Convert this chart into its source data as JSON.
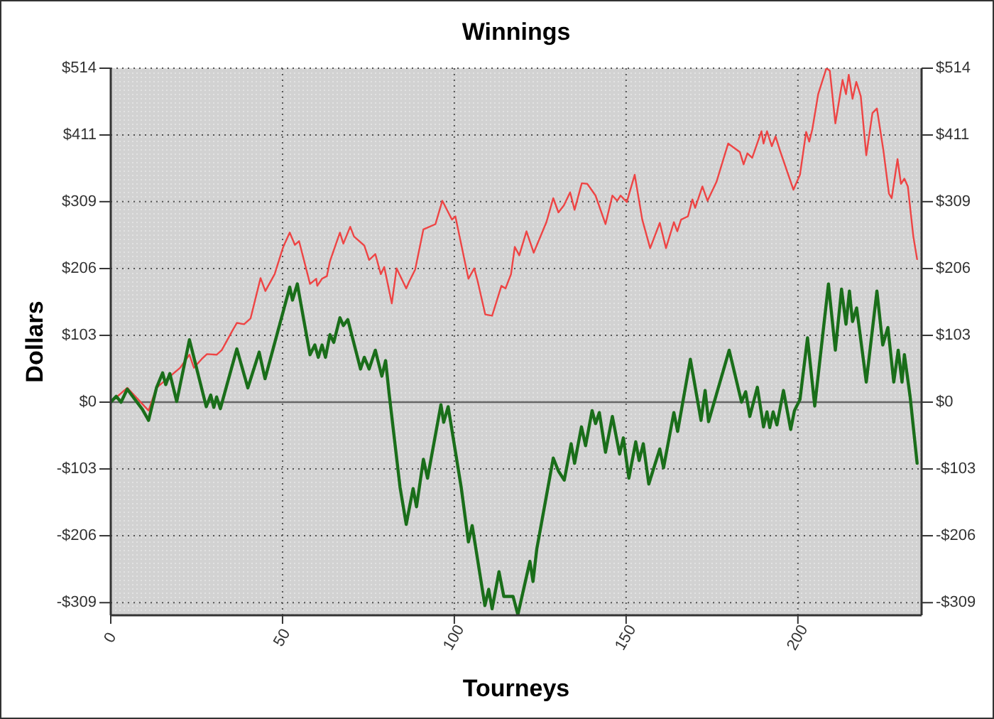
{
  "chart_data": {
    "type": "line",
    "title": "Winnings",
    "xlabel": "Tourneys",
    "ylabel": "Dollars",
    "xlim": [
      0,
      236
    ],
    "xticks": [
      0,
      50,
      100,
      150,
      200
    ],
    "ylim": [
      -328,
      514
    ],
    "yticks": [
      {
        "value": -308.6,
        "label": "-$309"
      },
      {
        "value": -205.6,
        "label": "-$206"
      },
      {
        "value": -102.8,
        "label": "-$103"
      },
      {
        "value": 0,
        "label": "$0"
      },
      {
        "value": 102.8,
        "label": "$103"
      },
      {
        "value": 205.6,
        "label": "$206"
      },
      {
        "value": 308.6,
        "label": "$309"
      },
      {
        "value": 411.2,
        "label": "$411"
      },
      {
        "value": 514,
        "label": "$514"
      }
    ],
    "y2lim": [
      -328,
      514
    ],
    "y2ticks": [
      {
        "value": -308.6,
        "label": "-$309"
      },
      {
        "value": -205.6,
        "label": "-$206"
      },
      {
        "value": -102.8,
        "label": "-$103"
      },
      {
        "value": 0,
        "label": "$0"
      },
      {
        "value": 102.8,
        "label": "$103"
      },
      {
        "value": 205.6,
        "label": "$206"
      },
      {
        "value": 308.6,
        "label": "$309"
      },
      {
        "value": 411.2,
        "label": "$411"
      },
      {
        "value": 514,
        "label": "$514"
      }
    ],
    "grid": true,
    "ref_lines": [
      {
        "axis": "y",
        "value": 0,
        "color": "#666666"
      }
    ],
    "series": [
      {
        "color": "#ee4444",
        "x": [
          0,
          4.8,
          11,
          13.3,
          20.2,
          22.9,
          24.2,
          26.4,
          28,
          30.8,
          32.3,
          35.3,
          36.7,
          38.8,
          40.7,
          43.6,
          45,
          47.7,
          50.2,
          52.1,
          53.6,
          54.8,
          58,
          59.8,
          60.1,
          61.5,
          62.9,
          63.8,
          66.7,
          67.7,
          69.7,
          70.8,
          73.8,
          75.2,
          77,
          78.6,
          79.6,
          81.8,
          83.2,
          86,
          86.9,
          88.6,
          91,
          94.5,
          96.5,
          99.3,
          100.3,
          104.1,
          105.8,
          106.8,
          109,
          111,
          113.7,
          114.9,
          116.5,
          117.6,
          118.9,
          121,
          123.1,
          126.8,
          128.8,
          130.3,
          131.9,
          133.7,
          135,
          137.1,
          138.7,
          141.1,
          144,
          146,
          147.4,
          148.4,
          150.2,
          152.5,
          154.7,
          157,
          159.8,
          161.6,
          163.9,
          164.9,
          166,
          168,
          169.3,
          170.1,
          172.2,
          173.7,
          176.3,
          179.7,
          183.1,
          184.2,
          185.3,
          186.7,
          189.4,
          190,
          191,
          192.4,
          193.5,
          194.8,
          198.7,
          200.6,
          202.4,
          203.3,
          204.2,
          205.9,
          208.3,
          209.3,
          210.9,
          213,
          214,
          214.8,
          215.9,
          217,
          218.3,
          219.9,
          221.7,
          223,
          224.9,
          226.5,
          227.3,
          229,
          230,
          231,
          232,
          233.6,
          234.7
        ],
        "values": [
          0,
          22,
          -13,
          22,
          53,
          73,
          53,
          66,
          74,
          73,
          80,
          109,
          122,
          120,
          129,
          191,
          171,
          197,
          239,
          261,
          242,
          248,
          182,
          190,
          179,
          190,
          194,
          217,
          261,
          244,
          270,
          255,
          241,
          219,
          228,
          197,
          208,
          152,
          206,
          175,
          186,
          204,
          266,
          274,
          310,
          281,
          286,
          190,
          206,
          186,
          135,
          133,
          179,
          175,
          197,
          239,
          226,
          263,
          230,
          277,
          314,
          292,
          303,
          323,
          296,
          337,
          336,
          318,
          274,
          318,
          310,
          318,
          308,
          350,
          281,
          237,
          276,
          237,
          277,
          263,
          281,
          286,
          312,
          299,
          332,
          310,
          339,
          398,
          385,
          366,
          383,
          376,
          417,
          398,
          417,
          394,
          409,
          387,
          327,
          350,
          416,
          401,
          420,
          474,
          514,
          510,
          429,
          496,
          474,
          504,
          467,
          493,
          471,
          380,
          445,
          452,
          387,
          321,
          314,
          374,
          336,
          344,
          332,
          255,
          220
        ]
      },
      {
        "color": "#1a6e1a",
        "x": [
          0,
          1.6,
          3,
          4.8,
          9.2,
          11,
          13.3,
          15.1,
          16,
          17.2,
          19.2,
          22.9,
          27.8,
          29.1,
          30,
          30.8,
          31.9,
          36.7,
          39.9,
          43.2,
          44.9,
          52.1,
          52.9,
          54.3,
          58,
          59.4,
          60.4,
          61.5,
          62.5,
          63.8,
          64.9,
          66.7,
          67.7,
          69,
          72.7,
          73.8,
          75.2,
          77,
          78.9,
          80,
          81,
          84.2,
          86,
          88,
          89,
          91,
          92.2,
          96.1,
          96.9,
          98.2,
          102,
          104.1,
          105.2,
          108.9,
          110,
          111,
          113,
          114.4,
          117.1,
          118.5,
          122,
          122.9,
          124,
          128.8,
          130.3,
          132,
          134,
          135,
          137,
          138.2,
          140.1,
          141.1,
          142.2,
          144,
          146,
          148.1,
          149.2,
          150.8,
          152.8,
          153.8,
          155,
          156.6,
          159.8,
          160.9,
          163.9,
          165,
          168.7,
          171.8,
          173,
          174,
          180,
          183.6,
          184.8,
          186,
          188.2,
          190,
          191,
          191.8,
          192.8,
          193.9,
          195.8,
          197.9,
          199,
          200.6,
          202.8,
          204.9,
          208.9,
          210.9,
          212.7,
          214,
          215,
          215.9,
          217.1,
          219.9,
          223,
          224.7,
          226.2,
          227.9,
          229.2,
          230.3,
          231,
          232.7,
          234.7
        ],
        "values": [
          0,
          9,
          0,
          20,
          -11,
          -28,
          22,
          45,
          27,
          44,
          1,
          96,
          -7,
          11,
          -8,
          8,
          -10,
          82,
          22,
          77,
          36,
          177,
          157,
          182,
          73,
          88,
          69,
          88,
          69,
          104,
          92,
          130,
          118,
          127,
          51,
          69,
          51,
          80,
          40,
          64,
          14,
          -131,
          -188,
          -133,
          -161,
          -88,
          -117,
          -4,
          -31,
          -7,
          -131,
          -215,
          -190,
          -313,
          -288,
          -318,
          -261,
          -299,
          -299,
          -327,
          -245,
          -276,
          -226,
          -86,
          -106,
          -120,
          -64,
          -94,
          -38,
          -67,
          -13,
          -33,
          -16,
          -77,
          -22,
          -80,
          -55,
          -117,
          -61,
          -90,
          -64,
          -126,
          -72,
          -101,
          -16,
          -45,
          66,
          -28,
          18,
          -30,
          80,
          0,
          16,
          -22,
          23,
          -38,
          -15,
          -39,
          -15,
          -35,
          18,
          -42,
          -13,
          4,
          99,
          -6,
          182,
          80,
          174,
          120,
          171,
          124,
          145,
          31,
          171,
          88,
          115,
          31,
          80,
          31,
          73,
          7,
          -94
        ]
      }
    ]
  }
}
